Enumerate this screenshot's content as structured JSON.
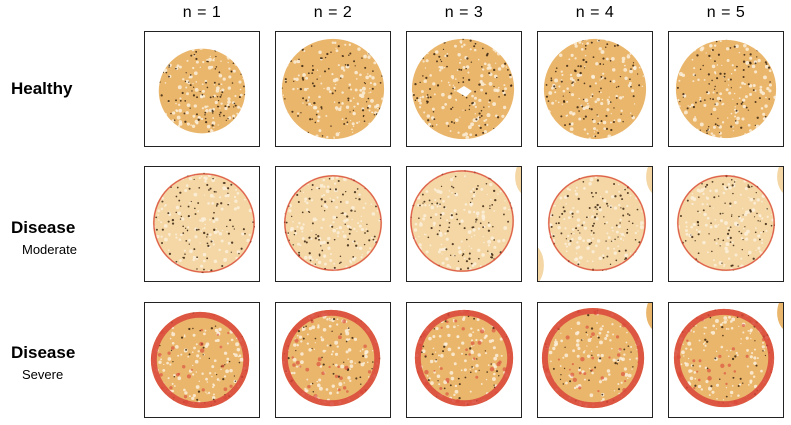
{
  "columns": [
    "n = 1",
    "n = 2",
    "n = 3",
    "n = 4",
    "n = 5"
  ],
  "rows": [
    {
      "title": "Healthy",
      "subtitle": "",
      "condition": "healthy"
    },
    {
      "title": "Disease",
      "subtitle": "Moderate",
      "condition": "moderate"
    },
    {
      "title": "Disease",
      "subtitle": "Severe",
      "condition": "severe"
    }
  ],
  "colors": {
    "tissue_base": "#eab66c",
    "tissue_light": "#f4d7a5",
    "nuclei": "#3a2410",
    "fibrosis": "#d9453a"
  }
}
